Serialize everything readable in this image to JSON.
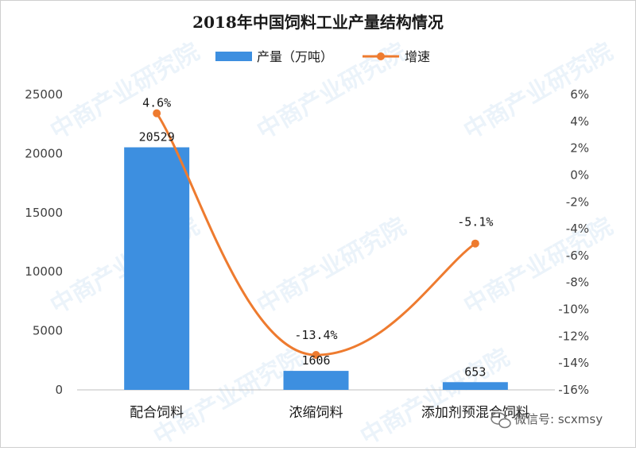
{
  "chart_data": {
    "type": "bar",
    "title": "2018年中国饲料工业产量结构情况",
    "categories": [
      "配合饲料",
      "浓缩饲料",
      "添加剂预混合饲料"
    ],
    "series": [
      {
        "name": "产量（万吨）",
        "type": "bar",
        "axis": "left",
        "color": "#3d8fe0",
        "values": [
          20529,
          1606,
          653
        ],
        "labels": [
          "20529",
          "1606",
          "653"
        ]
      },
      {
        "name": "增速",
        "type": "line",
        "axis": "right",
        "color": "#ee7b2f",
        "values": [
          4.6,
          -13.4,
          -5.1
        ],
        "labels": [
          "4.6%",
          "-13.4%",
          "-5.1%"
        ]
      }
    ],
    "y_left": {
      "min": 0,
      "max": 25000,
      "ticks": [
        0,
        5000,
        10000,
        15000,
        20000,
        25000
      ],
      "tick_labels": [
        "0",
        "5000",
        "10000",
        "15000",
        "20000",
        "25000"
      ]
    },
    "y_right": {
      "min": -16,
      "max": 6,
      "ticks": [
        6,
        4,
        2,
        0,
        -2,
        -4,
        -6,
        -8,
        -10,
        -12,
        -14,
        -16
      ],
      "tick_labels": [
        "6%",
        "4%",
        "2%",
        "0%",
        "-2%",
        "-4%",
        "-6%",
        "-8%",
        "-10%",
        "-12%",
        "-14%",
        "-16%"
      ]
    },
    "legend_position": "top",
    "grid": false
  },
  "watermark": {
    "text": "中商产业研究院"
  },
  "credit": {
    "text": "微信号: scxmsy",
    "icon": "wechat-icon"
  }
}
